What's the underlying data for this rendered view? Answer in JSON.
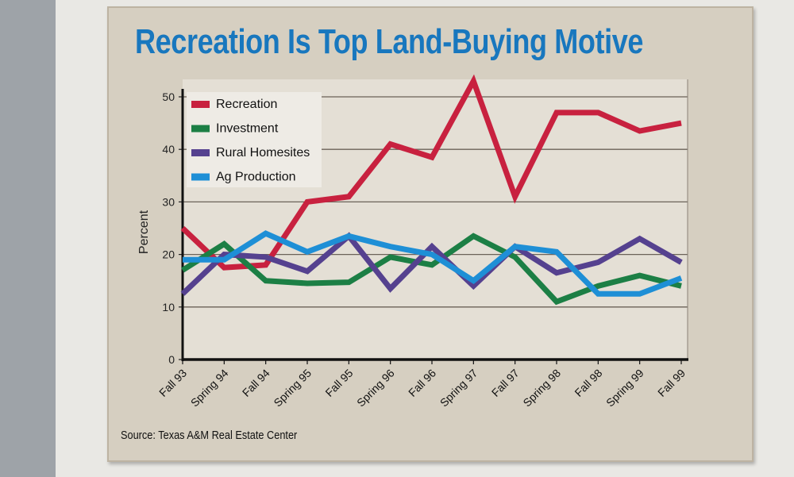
{
  "chart_data": {
    "type": "line",
    "title": "Recreation Is Top Land-Buying Motive",
    "xlabel": "",
    "ylabel": "Percent",
    "ylim": [
      0,
      50
    ],
    "yticks": [
      0,
      10,
      20,
      30,
      40,
      50
    ],
    "grid": true,
    "legend_placement": "top-left",
    "categories": [
      "Fall 93",
      "Spring 94",
      "Fall 94",
      "Spring 95",
      "Fall 95",
      "Spring 96",
      "Fall 96",
      "Spring 97",
      "Fall 97",
      "Spring 98",
      "Fall 98",
      "Spring 99",
      "Fall 99"
    ],
    "series": [
      {
        "name": "Recreation",
        "color": "#c8213f",
        "values": [
          25,
          17.5,
          18,
          30,
          31,
          41,
          38.5,
          53,
          31,
          47,
          47,
          43.5,
          45
        ]
      },
      {
        "name": "Investment",
        "color": "#1c7f45",
        "values": [
          17,
          22,
          15,
          14.5,
          14.7,
          19.5,
          18,
          23.5,
          19.5,
          11,
          14,
          16,
          14
        ]
      },
      {
        "name": "Rural Homesites",
        "color": "#55418f",
        "values": [
          12.5,
          20,
          19.5,
          16.8,
          23.5,
          13.5,
          21.5,
          14,
          21.5,
          16.5,
          18.5,
          23,
          18.5
        ]
      },
      {
        "name": "Ag Production",
        "color": "#1e8fd6",
        "values": [
          19,
          19,
          24,
          20.5,
          23.5,
          21.5,
          20,
          15,
          21.5,
          20.5,
          12.5,
          12.5,
          15.5
        ]
      }
    ],
    "source": "Source: Texas A&M Real Estate Center"
  }
}
